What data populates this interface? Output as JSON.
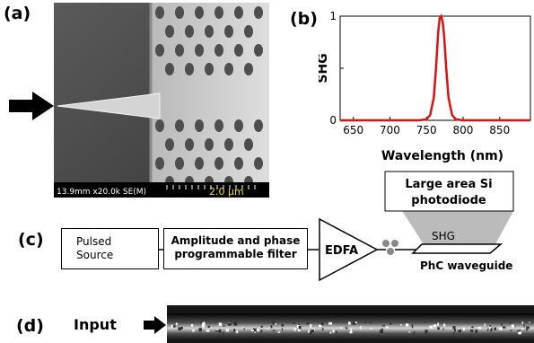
{
  "panels": {
    "a": "(a)",
    "b": "(b)",
    "c": "(c)",
    "d": "(d)"
  },
  "sem": {
    "info": "13.9mm x20.0k SE(M)",
    "scale": "2.0 µm"
  },
  "chart_data": {
    "type": "line",
    "xlabel": "Wavelength (nm)",
    "ylabel": "SHG",
    "xlim": [
      632,
      892
    ],
    "ylim": [
      0,
      1
    ],
    "xticks": [
      "650",
      "700",
      "750",
      "800",
      "850"
    ],
    "yticks": [
      "0",
      "0.5",
      "1"
    ],
    "series": [
      {
        "color": "#dd1111",
        "x": [
          632,
          700,
          740,
          750,
          755,
          760,
          763,
          766,
          768,
          770,
          772,
          774,
          777,
          780,
          785,
          790,
          800,
          830,
          892
        ],
        "y": [
          0,
          0,
          0,
          0.01,
          0.05,
          0.22,
          0.5,
          0.85,
          0.98,
          1.0,
          0.95,
          0.82,
          0.5,
          0.22,
          0.05,
          0.01,
          0,
          0,
          0
        ]
      }
    ]
  },
  "setup": {
    "pulsed_source": [
      "Pulsed",
      "Source"
    ],
    "filter": [
      "Amplitude and phase",
      "programmable filter"
    ],
    "edfa": "EDFA",
    "photodiode": [
      "Large area Si",
      "photodiode"
    ],
    "shg": "SHG",
    "waveguide": "PhC waveguide"
  },
  "input_label": "Input",
  "colors": {
    "signal": "#dd1111",
    "sem_bg": "#4a4a4a"
  }
}
